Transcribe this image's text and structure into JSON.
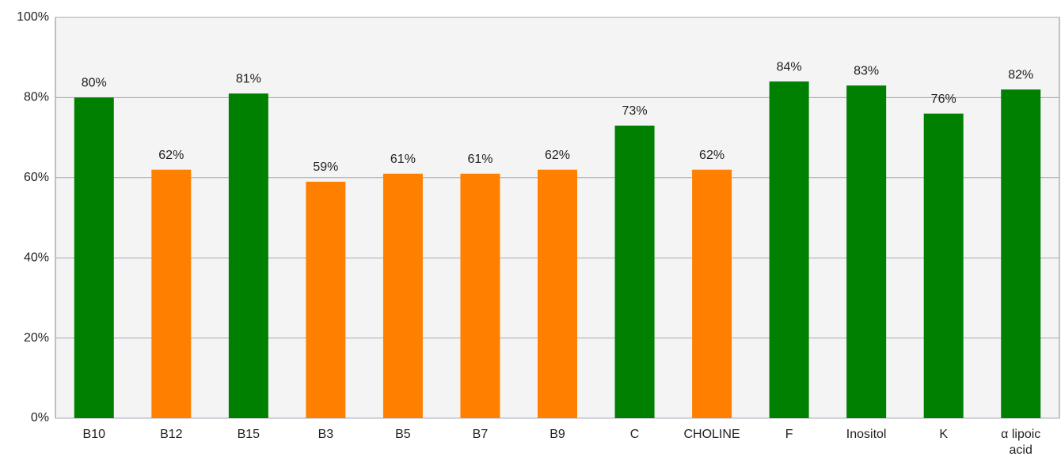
{
  "chart_data": {
    "type": "bar",
    "categories": [
      "B10",
      "B12",
      "B15",
      "B3",
      "B5",
      "B7",
      "B9",
      "C",
      "CHOLINE",
      "F",
      "Inositol",
      "K",
      "α lipoic acid"
    ],
    "values": [
      80,
      62,
      81,
      59,
      61,
      61,
      62,
      73,
      62,
      84,
      83,
      76,
      82
    ],
    "value_labels": [
      "80%",
      "62%",
      "81%",
      "59%",
      "61%",
      "61%",
      "62%",
      "73%",
      "62%",
      "84%",
      "83%",
      "76%",
      "82%"
    ],
    "colors": [
      "#008000",
      "#ff8000",
      "#008000",
      "#ff8000",
      "#ff8000",
      "#ff8000",
      "#ff8000",
      "#008000",
      "#ff8000",
      "#008000",
      "#008000",
      "#008000",
      "#008000"
    ],
    "ylim": [
      0,
      100
    ],
    "yticks": [
      {
        "value": 0,
        "label": "0%"
      },
      {
        "value": 20,
        "label": "20%"
      },
      {
        "value": 40,
        "label": "40%"
      },
      {
        "value": 60,
        "label": "60%"
      },
      {
        "value": 80,
        "label": "80%"
      },
      {
        "value": 100,
        "label": "100%"
      }
    ],
    "grid": true
  }
}
